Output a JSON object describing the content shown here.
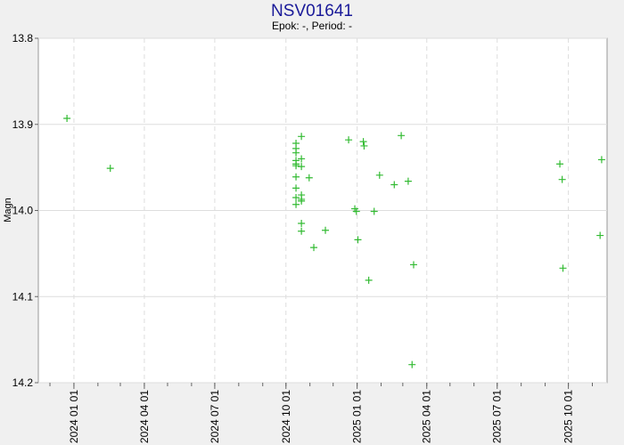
{
  "chart_data": {
    "type": "scatter",
    "title": "NSV01641",
    "subtitle": "Epok: -, Period: -",
    "y_label": "Magn",
    "y_inverted": true,
    "grid": true,
    "xlim": [
      "2023-11-16",
      "2025-11-20"
    ],
    "xticks": [
      {
        "value": "2024-01-01",
        "label": "2024 01 01"
      },
      {
        "value": "2024-04-01",
        "label": "2024 04 01"
      },
      {
        "value": "2024-07-01",
        "label": "2024 07 01"
      },
      {
        "value": "2024-10-01",
        "label": "2024 10 01"
      },
      {
        "value": "2025-01-01",
        "label": "2025 01 01"
      },
      {
        "value": "2025-04-01",
        "label": "2025 04 01"
      },
      {
        "value": "2025-07-01",
        "label": "2025 07 01"
      },
      {
        "value": "2025-10-01",
        "label": "2025 10 01"
      }
    ],
    "ylim": [
      13.8,
      14.2
    ],
    "yticks": [
      13.8,
      13.9,
      {
        "value": 14,
        "label": "14.0"
      },
      14.1,
      14.2
    ],
    "series": [
      {
        "color": "#33bb33",
        "x": [
          "2023-12-23",
          "2024-02-17",
          "2024-10-14",
          "2024-10-14",
          "2024-10-14",
          "2024-10-14",
          "2024-10-14",
          "2024-10-14",
          "2024-10-14",
          "2024-10-14",
          "2024-10-14",
          "2024-10-14",
          "2024-10-21",
          "2024-10-21",
          "2024-10-21",
          "2024-10-21",
          "2024-10-21",
          "2024-10-21",
          "2024-10-21",
          "2024-10-21",
          "2024-10-31",
          "2024-11-06",
          "2024-11-21",
          "2024-12-21",
          "2024-12-29",
          "2024-12-31",
          "2025-01-02",
          "2025-01-09",
          "2025-01-10",
          "2025-01-16",
          "2025-01-23",
          "2025-01-30",
          "2025-02-18",
          "2025-02-27",
          "2025-03-08",
          "2025-03-13",
          "2025-03-15",
          "2025-09-20",
          "2025-09-23",
          "2025-09-24",
          "2025-11-11",
          "2025-11-13"
        ],
        "values": [
          13.893,
          13.951,
          13.922,
          13.928,
          13.933,
          13.942,
          13.946,
          13.948,
          13.961,
          13.974,
          13.985,
          13.993,
          13.914,
          13.94,
          13.949,
          13.982,
          13.987,
          13.989,
          14.015,
          14.024,
          13.962,
          14.043,
          14.023,
          13.918,
          13.998,
          14.001,
          14.034,
          13.92,
          13.925,
          14.081,
          14.001,
          13.959,
          13.97,
          13.913,
          13.966,
          14.179,
          14.063,
          13.946,
          13.964,
          14.067,
          14.029,
          13.941
        ]
      }
    ]
  }
}
